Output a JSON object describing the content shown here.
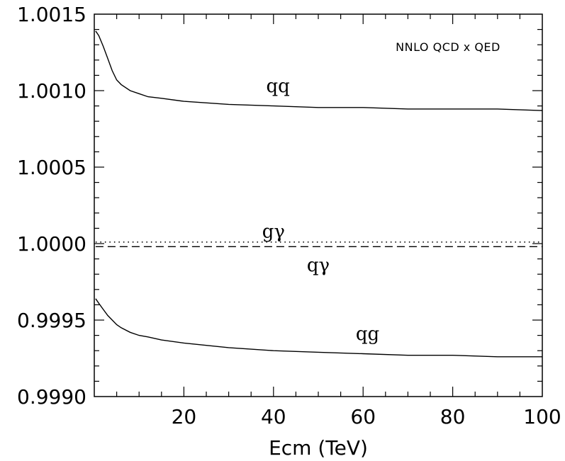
{
  "chart_data": {
    "type": "line",
    "title": "",
    "xlabel": "Ecm (TeV)",
    "ylabel": "",
    "xlim": [
      0,
      100
    ],
    "ylim": [
      0.999,
      1.0015
    ],
    "x_ticks": [
      "20",
      "40",
      "60",
      "80",
      "100"
    ],
    "y_ticks": [
      "0.9990",
      "0.9995",
      "1.0000",
      "1.0005",
      "1.0010",
      "1.0015"
    ],
    "annotation": "NNLO QCD x QED",
    "grid": false,
    "series": [
      {
        "name": "qq",
        "style": "solid",
        "x": [
          0.3,
          1,
          2,
          3,
          4,
          5,
          6,
          8,
          10,
          12,
          15,
          20,
          30,
          40,
          50,
          60,
          70,
          80,
          90,
          100
        ],
        "y": [
          1.00139,
          1.00136,
          1.00129,
          1.00121,
          1.00113,
          1.00107,
          1.00104,
          1.001,
          1.00098,
          1.00096,
          1.00095,
          1.00093,
          1.00091,
          1.0009,
          1.00089,
          1.00089,
          1.00088,
          1.00088,
          1.00088,
          1.00087
        ]
      },
      {
        "name": "qg",
        "style": "solid",
        "x": [
          0.3,
          1,
          2,
          3,
          4,
          5,
          6,
          8,
          10,
          12,
          15,
          20,
          30,
          40,
          50,
          60,
          70,
          80,
          90,
          100
        ],
        "y": [
          0.99964,
          0.99961,
          0.99957,
          0.99953,
          0.9995,
          0.99947,
          0.99945,
          0.99942,
          0.9994,
          0.99939,
          0.99937,
          0.99935,
          0.99932,
          0.9993,
          0.99929,
          0.99928,
          0.99927,
          0.99927,
          0.99926,
          0.99926
        ]
      },
      {
        "name": "gγ",
        "style": "dotted",
        "x": [
          0.3,
          100
        ],
        "y": [
          1.00001,
          1.00001
        ]
      },
      {
        "name": "qγ",
        "style": "dashed",
        "x": [
          0.3,
          100
        ],
        "y": [
          0.99998,
          0.99998
        ]
      }
    ],
    "curve_labels": [
      {
        "name": "qq",
        "x": 41,
        "y": 1.00099
      },
      {
        "name": "gγ",
        "x": 40,
        "y": 1.00004
      },
      {
        "name": "qγ",
        "x": 50,
        "y": 0.99982
      },
      {
        "name": "qg",
        "x": 61,
        "y": 0.99937
      }
    ]
  }
}
